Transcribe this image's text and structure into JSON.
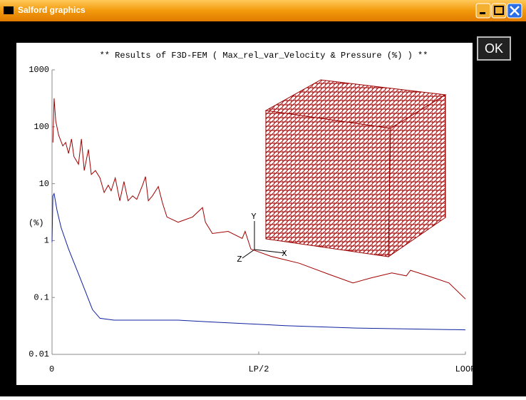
{
  "window": {
    "title": "Salford graphics",
    "button": "OK"
  },
  "inset": {
    "axis_labels": [
      "Y",
      "Z",
      "X"
    ]
  },
  "chart_data": {
    "type": "line",
    "title": "** Results of F3D-FEM ( Max_rel_var_Velocity & Pressure (%) ) **",
    "y_label": "(%)",
    "log_y": true,
    "xlim": [
      0,
      1
    ],
    "xticks": [
      0,
      {
        "value": 0.5,
        "label": "LP/2"
      },
      {
        "value": 1,
        "label": "LOOP"
      }
    ],
    "ylim": [
      0.01,
      1000
    ],
    "yticks": [
      0.01,
      0.1,
      1,
      10,
      100,
      1000
    ],
    "series": [
      {
        "color": "#a00000",
        "x": [
          0.002,
          0.005,
          0.009,
          0.016,
          0.026,
          0.033,
          0.04,
          0.047,
          0.053,
          0.064,
          0.071,
          0.078,
          0.088,
          0.095,
          0.105,
          0.116,
          0.126,
          0.136,
          0.143,
          0.153,
          0.164,
          0.174,
          0.184,
          0.195,
          0.205,
          0.219,
          0.226,
          0.233,
          0.243,
          0.257,
          0.267,
          0.278,
          0.305,
          0.34,
          0.364,
          0.371,
          0.388,
          0.426,
          0.46,
          0.467,
          0.481,
          0.529,
          0.598,
          0.667,
          0.728,
          0.771,
          0.822,
          0.857,
          0.867,
          0.909,
          0.96,
          1
        ],
        "values": [
          53,
          316,
          126,
          71,
          46,
          53,
          34,
          61,
          30,
          22,
          61,
          17,
          40,
          14.5,
          17,
          12.6,
          7,
          9.4,
          7.5,
          12.6,
          5,
          10.9,
          5,
          6.1,
          5.3,
          9.4,
          13.3,
          5,
          6.1,
          8.9,
          4.6,
          2.6,
          2.1,
          2.6,
          3.8,
          2.1,
          1.33,
          1.45,
          1.09,
          1.45,
          0.71,
          0.53,
          0.4,
          0.26,
          0.18,
          0.22,
          0.27,
          0.24,
          0.3,
          0.24,
          0.18,
          0.094
        ]
      },
      {
        "color": "#1020a0",
        "x": [
          0,
          0.002,
          0.005,
          0.012,
          0.022,
          0.04,
          0.064,
          0.081,
          0.098,
          0.116,
          0.15,
          0.305,
          0.391,
          0.564,
          0.736,
          1
        ],
        "values": [
          0.94,
          6.1,
          6.7,
          3.4,
          1.68,
          0.71,
          0.26,
          0.126,
          0.061,
          0.043,
          0.04,
          0.04,
          0.037,
          0.032,
          0.029,
          0.027
        ]
      }
    ]
  }
}
